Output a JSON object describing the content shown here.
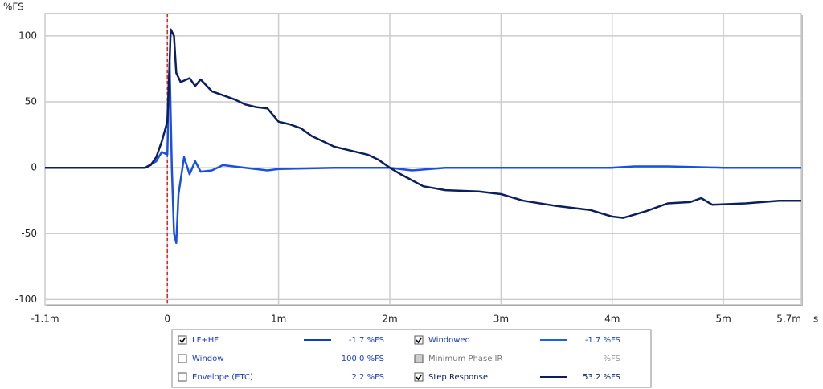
{
  "chart_data": {
    "type": "line",
    "y_label": "%FS",
    "x_unit": "s",
    "xlim": [
      -1.1,
      5.7
    ],
    "ylim": [
      -104,
      117
    ],
    "xticks": [
      {
        "value": -1.1,
        "label": "-1.1m"
      },
      0,
      {
        "value": 1,
        "label": "1m"
      },
      {
        "value": 2,
        "label": "2m"
      },
      {
        "value": 3,
        "label": "3m"
      },
      {
        "value": 4,
        "label": "4m"
      },
      {
        "value": 5,
        "label": "5m"
      },
      {
        "value": 5.7,
        "label": "5.7m"
      }
    ],
    "yticks": [
      100,
      50,
      0,
      -50,
      -100
    ],
    "grid": true,
    "marker_x": 0,
    "marker_color": "#e02020",
    "series": [
      {
        "color": "#0b1f5e",
        "x": [
          -1.1,
          -0.2,
          -0.15,
          -0.1,
          -0.05,
          0,
          0.02,
          0.03,
          0.06,
          0.08,
          0.12,
          0.2,
          0.25,
          0.3,
          0.4,
          0.5,
          0.6,
          0.7,
          0.8,
          0.9,
          1.0,
          1.1,
          1.2,
          1.3,
          1.4,
          1.5,
          1.6,
          1.8,
          1.9,
          2.0,
          2.1,
          2.3,
          2.5,
          2.8,
          3.0,
          3.2,
          3.5,
          3.8,
          4.0,
          4.1,
          4.3,
          4.5,
          4.7,
          4.8,
          4.9,
          5.2,
          5.5,
          5.7
        ],
        "values": [
          0,
          0,
          2,
          8,
          20,
          35,
          80,
          105,
          100,
          72,
          65,
          68,
          62,
          67,
          58,
          55,
          52,
          48,
          46,
          45,
          35,
          33,
          30,
          24,
          20,
          16,
          14,
          10,
          6,
          0,
          -5,
          -14,
          -17,
          -18,
          -20,
          -25,
          -29,
          -32,
          -37,
          -38,
          -33,
          -27,
          -26,
          -23,
          -28,
          -27,
          -25,
          -25
        ]
      },
      {
        "color": "#1a4fe6",
        "x": [
          -1.1,
          -0.2,
          -0.1,
          -0.05,
          0,
          0.02,
          0.04,
          0.06,
          0.08,
          0.1,
          0.15,
          0.2,
          0.25,
          0.3,
          0.4,
          0.5,
          0.7,
          0.9,
          1.0,
          1.5,
          1.8,
          2.0,
          2.2,
          2.5,
          3.0,
          3.5,
          4.0,
          4.2,
          4.5,
          5.0,
          5.7
        ],
        "values": [
          0,
          0,
          5,
          12,
          10,
          80,
          0,
          -50,
          -57,
          -20,
          8,
          -5,
          5,
          -3,
          -2,
          2,
          0,
          -2,
          -1,
          0,
          0,
          0,
          -2,
          0,
          0,
          0,
          0,
          1,
          1,
          0,
          0
        ]
      }
    ]
  },
  "legend_panel": {
    "rows": [
      [
        {
          "label": "LF+HF",
          "readout": "-1.7 %FS",
          "checked": true,
          "enabled": true,
          "color": "#0b3fd0"
        },
        {
          "label": "Windowed",
          "readout": "-1.7 %FS",
          "checked": true,
          "enabled": true,
          "color": "#1a5ff0"
        }
      ],
      [
        {
          "label": "Window",
          "readout": "100.0 %FS",
          "checked": false,
          "enabled": true
        },
        {
          "label": "Minimum Phase IR",
          "readout": "%FS",
          "checked": false,
          "enabled": false
        }
      ],
      [
        {
          "label": "Envelope (ETC)",
          "readout": "2.2 %FS",
          "checked": false,
          "enabled": true
        },
        {
          "label": "Step Response",
          "readout": "53.2 %FS",
          "checked": true,
          "enabled": true,
          "color": "#0b1f5e"
        }
      ]
    ]
  }
}
